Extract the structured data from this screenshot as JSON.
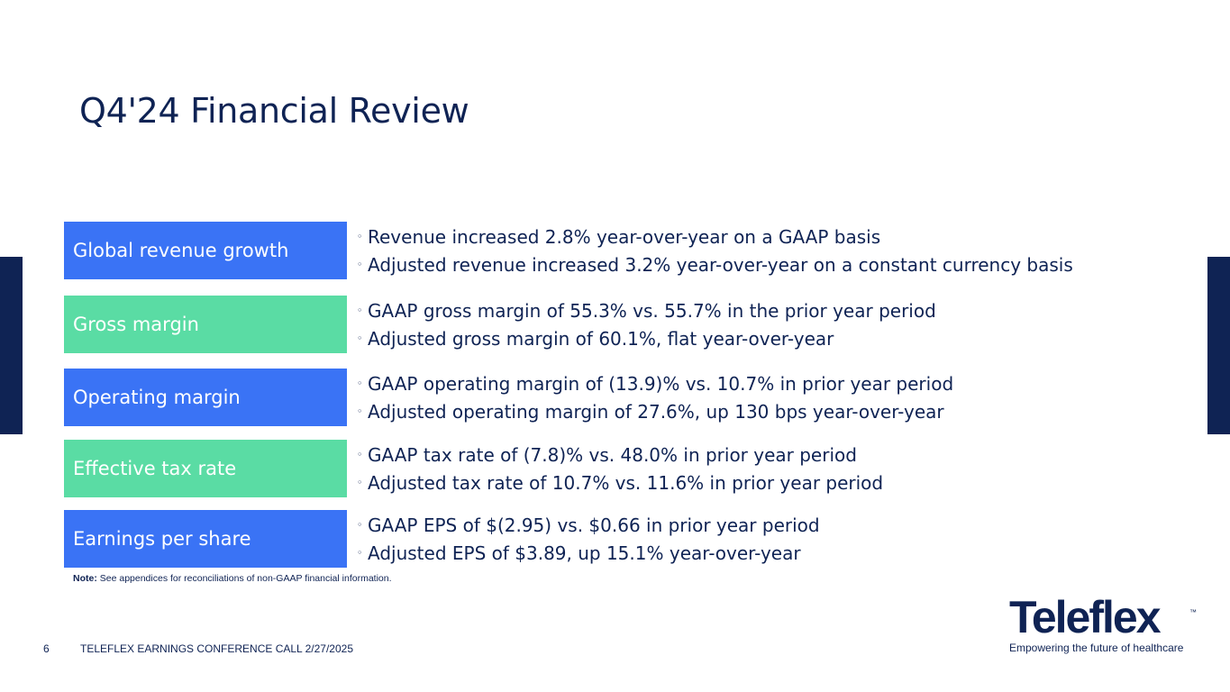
{
  "slide": {
    "title": "Q4'24 Financial Review"
  },
  "rows": [
    {
      "label": "Global revenue growth",
      "color": "blue",
      "bullets": [
        "Revenue increased 2.8% year-over-year on a GAAP basis",
        "Adjusted revenue increased 3.2% year-over-year on a constant currency basis"
      ]
    },
    {
      "label": "Gross margin",
      "color": "green",
      "bullets": [
        "GAAP gross margin of 55.3% vs. 55.7% in the prior year period",
        "Adjusted gross margin of 60.1%, flat year-over-year"
      ]
    },
    {
      "label": "Operating margin",
      "color": "blue",
      "bullets": [
        "GAAP operating margin of (13.9)% vs. 10.7% in prior year period",
        "Adjusted operating margin of 27.6%, up 130 bps year-over-year"
      ]
    },
    {
      "label": "Effective tax rate",
      "color": "green",
      "bullets": [
        "GAAP tax rate of (7.8)% vs. 48.0% in prior year period",
        "Adjusted tax rate of 10.7% vs. 11.6% in prior year period"
      ]
    },
    {
      "label": "Earnings per share",
      "color": "blue",
      "bullets": [
        "GAAP EPS of $(2.95) vs. $0.66 in prior year period",
        "Adjusted EPS of $3.89, up 15.1% year-over-year"
      ]
    }
  ],
  "bullet_glyph": "◦",
  "note": {
    "label": "Note:",
    "text": " See appendices for reconciliations of non-GAAP financial information."
  },
  "footer": {
    "page_number": "6",
    "text": "TELEFLEX EARNINGS CONFERENCE CALL 2/27/2025"
  },
  "logo": {
    "wordmark": "Teleflex",
    "trademark": "™",
    "tagline": "Empowering the future of healthcare"
  },
  "colors": {
    "navy": "#0f2354",
    "blue": "#3a73f5",
    "green": "#5adca4"
  }
}
